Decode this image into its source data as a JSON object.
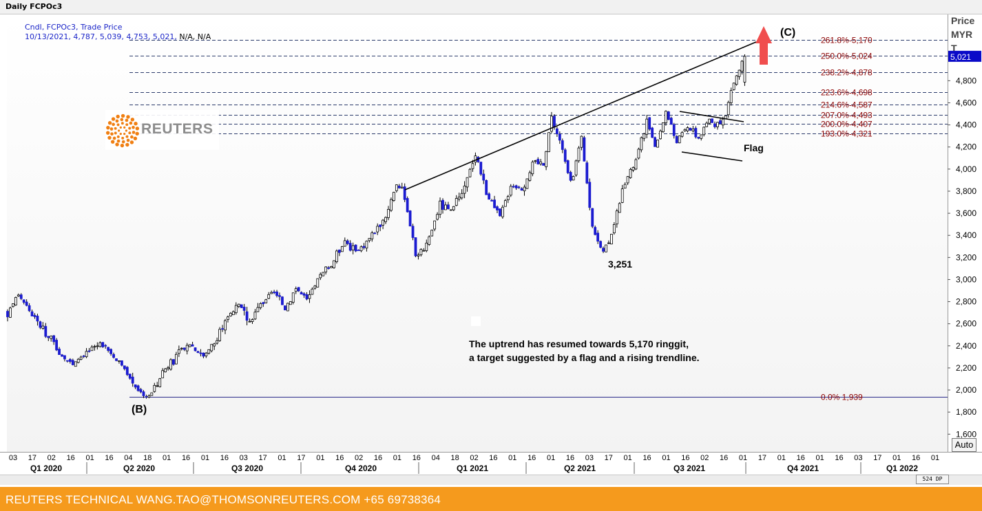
{
  "window": {
    "title": "Daily FCPOc3"
  },
  "info": {
    "line1": "Cndl, FCPOc3, Trade Price",
    "line2_values": "10/13/2021, 4,787, 5,039, 4,753, 5,021,",
    "line2_na": " N/A, N/A"
  },
  "axis": {
    "price_label_1": "Price",
    "price_label_2": "MYR",
    "price_label_3": "T",
    "current_price": "5,021",
    "auto_button": "Auto"
  },
  "logo": {
    "text": "REUTERS"
  },
  "note": {
    "line1": "The uptrend has resumed towards 5,170 ringgit,",
    "line2": "a target suggested by a flag and a rising trendline."
  },
  "footer": {
    "text": "REUTERS TECHNICAL  WANG.TAO@THOMSONREUTERS.COM  +65 69738364"
  },
  "scroll": {
    "dp": "524 DP"
  },
  "colors": {
    "up": "#ffffff",
    "down": "#1b1bd0",
    "fib_text": "#8b0000",
    "footer": "#f59a1d",
    "arrow": "#f04e4e"
  },
  "chart_data": {
    "type": "candlestick",
    "ylim": [
      1440,
      5400
    ],
    "y_ticks": [
      1600,
      1800,
      2000,
      2200,
      2400,
      2600,
      2800,
      3000,
      3200,
      3400,
      3600,
      3800,
      4000,
      4200,
      4400,
      4600,
      4800
    ],
    "y_tick_labels": [
      "1,600",
      "1,800",
      "2,000",
      "2,200",
      "2,400",
      "2,600",
      "2,800",
      "3,000",
      "3,200",
      "3,400",
      "3,600",
      "3,800",
      "4,000",
      "4,200",
      "4,400",
      "4,600",
      "4,800"
    ],
    "fib_levels": [
      {
        "value": 5170,
        "label": "261.8%-5,170"
      },
      {
        "value": 5024,
        "label": "250.0%-5,024"
      },
      {
        "value": 4878,
        "label": "238.2%-4,878"
      },
      {
        "value": 4698,
        "label": "223.6%-4,698"
      },
      {
        "value": 4587,
        "label": "214.6%-4,587"
      },
      {
        "value": 4493,
        "label": "207.0%-4,493"
      },
      {
        "value": 4407,
        "label": "200.0%-4,407"
      },
      {
        "value": 4321,
        "label": "193.0%-4,321"
      },
      {
        "value": 1939,
        "label": "0.0%    1,939"
      }
    ],
    "x_day_labels": [
      "03",
      "17",
      "02",
      "16",
      "01",
      "16",
      "04",
      "18",
      "01",
      "16",
      "01",
      "16",
      "03",
      "17",
      "01",
      "17",
      "01",
      "16",
      "02",
      "16",
      "01",
      "16",
      "04",
      "18",
      "02",
      "16",
      "01",
      "16",
      "01",
      "16",
      "03",
      "17",
      "01",
      "16",
      "01",
      "16",
      "02",
      "16",
      "01",
      "17",
      "01",
      "16",
      "01",
      "16",
      "03",
      "17",
      "01",
      "16",
      "01"
    ],
    "quarters": [
      "Q1 2020",
      "Q2 2020",
      "Q3 2020",
      "Q4 2020",
      "Q1 2021",
      "Q2 2021",
      "Q3 2021",
      "Q4 2021",
      "Q1 2022"
    ],
    "anchors": [
      [
        0,
        2700
      ],
      [
        4,
        2870
      ],
      [
        10,
        2650
      ],
      [
        18,
        2380
      ],
      [
        24,
        2220
      ],
      [
        30,
        2340
      ],
      [
        34,
        2430
      ],
      [
        39,
        2300
      ],
      [
        44,
        2140
      ],
      [
        49,
        1980
      ],
      [
        52,
        1939
      ],
      [
        57,
        2170
      ],
      [
        62,
        2300
      ],
      [
        67,
        2420
      ],
      [
        72,
        2310
      ],
      [
        77,
        2460
      ],
      [
        80,
        2650
      ],
      [
        85,
        2760
      ],
      [
        89,
        2620
      ],
      [
        94,
        2810
      ],
      [
        98,
        2880
      ],
      [
        102,
        2740
      ],
      [
        106,
        2930
      ],
      [
        110,
        2800
      ],
      [
        114,
        3000
      ],
      [
        119,
        3130
      ],
      [
        124,
        3360
      ],
      [
        128,
        3240
      ],
      [
        134,
        3400
      ],
      [
        139,
        3580
      ],
      [
        143,
        3870
      ],
      [
        146,
        3760
      ],
      [
        150,
        3230
      ],
      [
        154,
        3300
      ],
      [
        159,
        3680
      ],
      [
        163,
        3600
      ],
      [
        168,
        3820
      ],
      [
        172,
        4160
      ],
      [
        176,
        3780
      ],
      [
        181,
        3560
      ],
      [
        185,
        3860
      ],
      [
        189,
        3820
      ],
      [
        193,
        4040
      ],
      [
        197,
        4060
      ],
      [
        200,
        4470
      ],
      [
        203,
        4250
      ],
      [
        207,
        3880
      ],
      [
        211,
        4260
      ],
      [
        215,
        3480
      ],
      [
        219,
        3251
      ],
      [
        223,
        3480
      ],
      [
        227,
        3880
      ],
      [
        231,
        4080
      ],
      [
        235,
        4430
      ],
      [
        238,
        4180
      ],
      [
        242,
        4520
      ],
      [
        246,
        4250
      ],
      [
        250,
        4390
      ],
      [
        254,
        4280
      ],
      [
        258,
        4450
      ],
      [
        261,
        4380
      ],
      [
        264,
        4480
      ],
      [
        266,
        4720
      ],
      [
        269,
        4900
      ],
      [
        271,
        5021
      ]
    ],
    "annotations": {
      "B": {
        "text": "(B)"
      },
      "C": {
        "text": "(C)"
      },
      "low": {
        "text": "3,251",
        "value": 3251
      },
      "flag": {
        "text": "Flag"
      }
    },
    "last_candle": {
      "date": "10/13/2021",
      "open": 4787,
      "high": 5039,
      "low": 4753,
      "close": 5021
    }
  }
}
